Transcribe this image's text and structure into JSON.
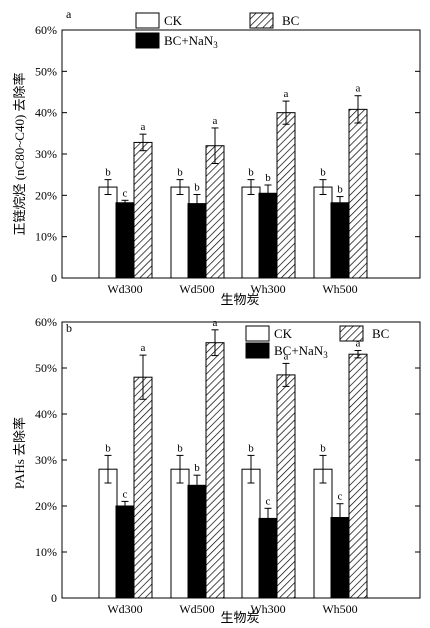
{
  "chart_data": [
    {
      "type": "bar",
      "panel_label": "a",
      "categories": [
        "Wd300",
        "Wd500",
        "Wh300",
        "Wh500"
      ],
      "series": [
        {
          "name": "CK",
          "values": [
            22,
            22,
            22,
            22
          ],
          "errors": [
            1.8,
            1.8,
            1.8,
            1.8
          ],
          "letters": [
            "b",
            "b",
            "b",
            "b"
          ]
        },
        {
          "name": "BC+NaN3",
          "values": [
            18.2,
            18,
            20.5,
            18.2
          ],
          "errors": [
            0.6,
            2.2,
            2.0,
            1.5
          ],
          "letters": [
            "c",
            "b",
            "b",
            "b"
          ]
        },
        {
          "name": "BC",
          "values": [
            32.8,
            32,
            40,
            40.8
          ],
          "errors": [
            2.0,
            4.3,
            2.8,
            3.3
          ],
          "letters": [
            "a",
            "a",
            "a",
            "a"
          ]
        }
      ],
      "ylabel": "正链烷烃 (nC80~C40) 去除率",
      "xlabel": "生物炭",
      "ylim": [
        0,
        60
      ],
      "yticks": [
        "0",
        "10%",
        "20%",
        "30%",
        "40%",
        "50%",
        "60%"
      ],
      "legend": {
        "ck": "CK",
        "bc": "BC",
        "nan_prefix": "BC+NaN",
        "nan_sub": "3"
      }
    },
    {
      "type": "bar",
      "panel_label": "b",
      "categories": [
        "Wd300",
        "Wd500",
        "Wh300",
        "Wh500"
      ],
      "series": [
        {
          "name": "CK",
          "values": [
            28,
            28,
            28,
            28
          ],
          "errors": [
            3.0,
            3.0,
            3.0,
            3.0
          ],
          "letters": [
            "b",
            "b",
            "b",
            "b"
          ]
        },
        {
          "name": "BC+NaN3",
          "values": [
            20,
            24.5,
            17.3,
            17.5
          ],
          "errors": [
            1.0,
            2.2,
            2.2,
            3.0
          ],
          "letters": [
            "c",
            "b",
            "c",
            "c"
          ]
        },
        {
          "name": "BC",
          "values": [
            48,
            55.5,
            48.5,
            53
          ],
          "errors": [
            4.8,
            2.8,
            2.5,
            0.8
          ],
          "letters": [
            "a",
            "a",
            "a",
            "a"
          ]
        }
      ],
      "ylabel": "PAHs 去除率",
      "xlabel": "生物炭",
      "ylim": [
        0,
        60
      ],
      "yticks": [
        "0",
        "10%",
        "20%",
        "30%",
        "40%",
        "50%",
        "60%"
      ],
      "legend": {
        "ck": "CK",
        "bc": "BC",
        "nan_prefix": "BC+NaN",
        "nan_sub": "3"
      }
    }
  ]
}
